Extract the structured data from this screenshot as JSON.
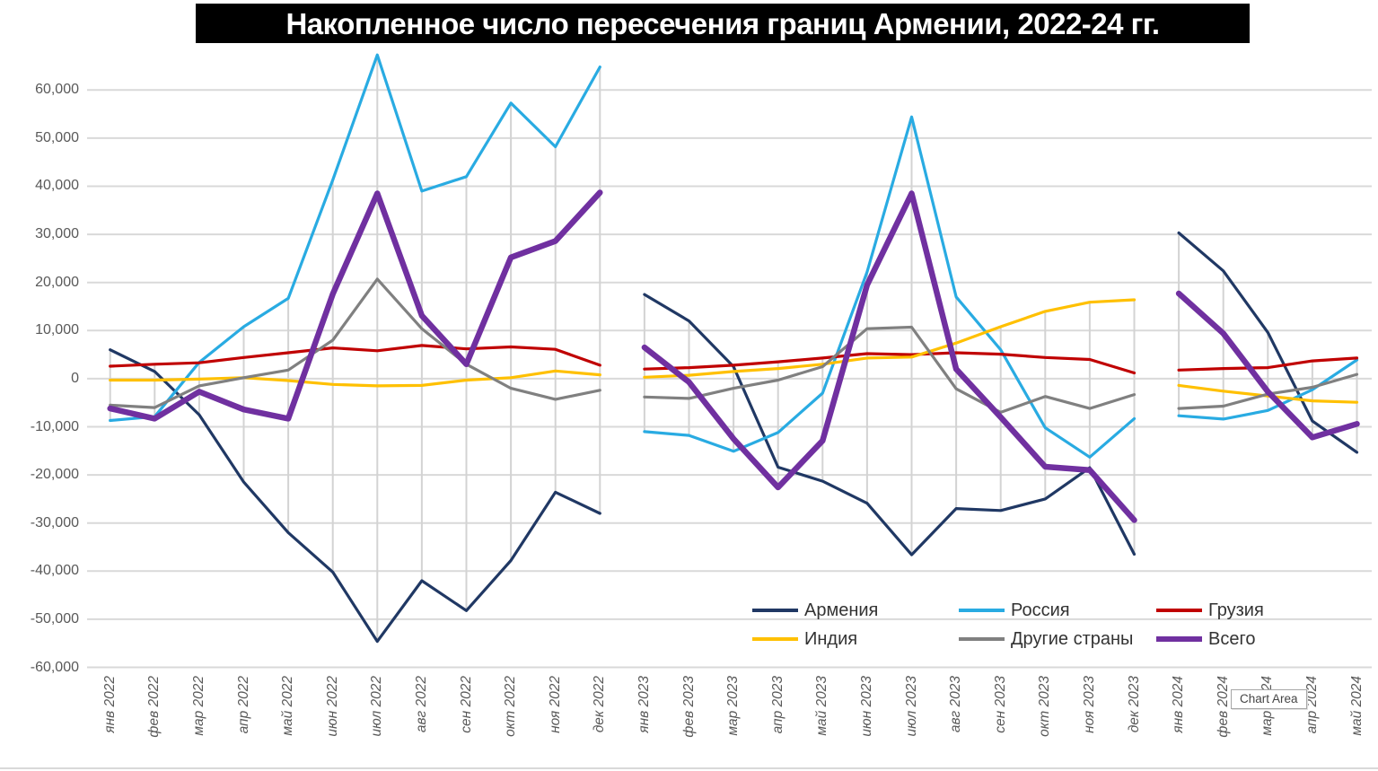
{
  "title": "Накопленное число пересечения границ Армении, 2022-24 гг.",
  "tooltip": "Chart Area",
  "colors": {
    "title_bg": "#000000",
    "title_text": "#ffffff",
    "gridline": "#d9d9d9",
    "highlow_line": "#d3d3d3",
    "tick_text": "#595959",
    "legend_text": "#333333"
  },
  "chart_data": {
    "type": "line",
    "title": "Накопленное число пересечения границ Армении, 2022-24 гг.",
    "grid": true,
    "legend_position": "bottom-right",
    "ylim": [
      -60000,
      60000
    ],
    "y_axis": {
      "ticks": [
        "60,000",
        "50,000",
        "40,000",
        "30,000",
        "20,000",
        "10,000",
        "0",
        "-10,000",
        "-20,000",
        "-30,000",
        "-40,000",
        "-50,000",
        "-60,000"
      ],
      "values": [
        60000,
        50000,
        40000,
        30000,
        20000,
        10000,
        0,
        -10000,
        -20000,
        -30000,
        -40000,
        -50000,
        -60000
      ]
    },
    "x_labels": [
      "янв 2022",
      "фев 2022",
      "мар 2022",
      "апр 2022",
      "май 2022",
      "июн 2022",
      "июл 2022",
      "авг 2022",
      "сен 2022",
      "окт 2022",
      "ноя 2022",
      "дек 2022",
      "янв 2023",
      "фев 2023",
      "мар 2023",
      "апр 2023",
      "май 2023",
      "июн 2023",
      "июл 2023",
      "авг 2023",
      "сен 2023",
      "окт 2023",
      "ноя 2023",
      "дек 2023",
      "янв 2024",
      "фев 2024",
      "мар 2024",
      "апр 2024",
      "май 2024"
    ],
    "segments": [
      [
        0,
        11
      ],
      [
        12,
        23
      ],
      [
        24,
        28
      ]
    ],
    "series": [
      {
        "id": "armenia",
        "name": "Армения",
        "color": "#203864",
        "width": 3.2,
        "values": [
          6000,
          1500,
          -7500,
          -21500,
          -32000,
          -40200,
          -54600,
          -42000,
          -48200,
          -37800,
          -23600,
          -28000,
          17500,
          12000,
          2500,
          -18400,
          -21300,
          -25900,
          -36600,
          -27000,
          -27400,
          -25000,
          -18500,
          -36500,
          30300,
          22400,
          9600,
          -8800,
          -15300
        ]
      },
      {
        "id": "russia",
        "name": "Россия",
        "color": "#29abe2",
        "width": 3.2,
        "values": [
          -8700,
          -7900,
          3400,
          10800,
          16700,
          41300,
          67300,
          39000,
          42000,
          57300,
          48200,
          64800,
          -11000,
          -11800,
          -15100,
          -11200,
          -3000,
          22200,
          54400,
          17000,
          6000,
          -10200,
          -16300,
          -8300,
          -7700,
          -8400,
          -6600,
          -2300,
          3900
        ]
      },
      {
        "id": "georgia",
        "name": "Грузия",
        "color": "#c00000",
        "width": 3.2,
        "values": [
          2600,
          3000,
          3300,
          4400,
          5400,
          6400,
          5800,
          6900,
          6200,
          6600,
          6100,
          2800,
          2000,
          2300,
          2800,
          3500,
          4300,
          5200,
          5000,
          5400,
          5100,
          4400,
          4000,
          1200,
          1800,
          2100,
          2300,
          3700,
          4300
        ]
      },
      {
        "id": "india",
        "name": "Индия",
        "color": "#ffc000",
        "width": 3.2,
        "values": [
          -300,
          -300,
          -100,
          200,
          -400,
          -1200,
          -1500,
          -1400,
          -300,
          200,
          1600,
          800,
          300,
          700,
          1500,
          2100,
          3000,
          4300,
          4500,
          7400,
          10800,
          14000,
          15900,
          16400,
          -1400,
          -2600,
          -3600,
          -4600,
          -4900
        ]
      },
      {
        "id": "other-countries",
        "name": "Другие страны",
        "color": "#808080",
        "width": 3.2,
        "values": [
          -5500,
          -6000,
          -1500,
          200,
          1800,
          8000,
          20700,
          10400,
          3000,
          -2000,
          -4300,
          -2400,
          -3800,
          -4100,
          -2000,
          -300,
          2500,
          10400,
          10700,
          -2100,
          -7000,
          -3700,
          -6200,
          -3300,
          -6200,
          -5700,
          -3200,
          -1800,
          900
        ]
      },
      {
        "id": "total",
        "name": "Всего",
        "color": "#7030a0",
        "width": 6.5,
        "values": [
          -6200,
          -8300,
          -2700,
          -6400,
          -8300,
          17600,
          38500,
          13100,
          3000,
          25200,
          28600,
          38700,
          6500,
          -700,
          -12500,
          -22600,
          -12900,
          19500,
          38500,
          2000,
          -8000,
          -18300,
          -19000,
          -29400,
          17700,
          9400,
          -2700,
          -12200,
          -9400
        ]
      }
    ]
  }
}
